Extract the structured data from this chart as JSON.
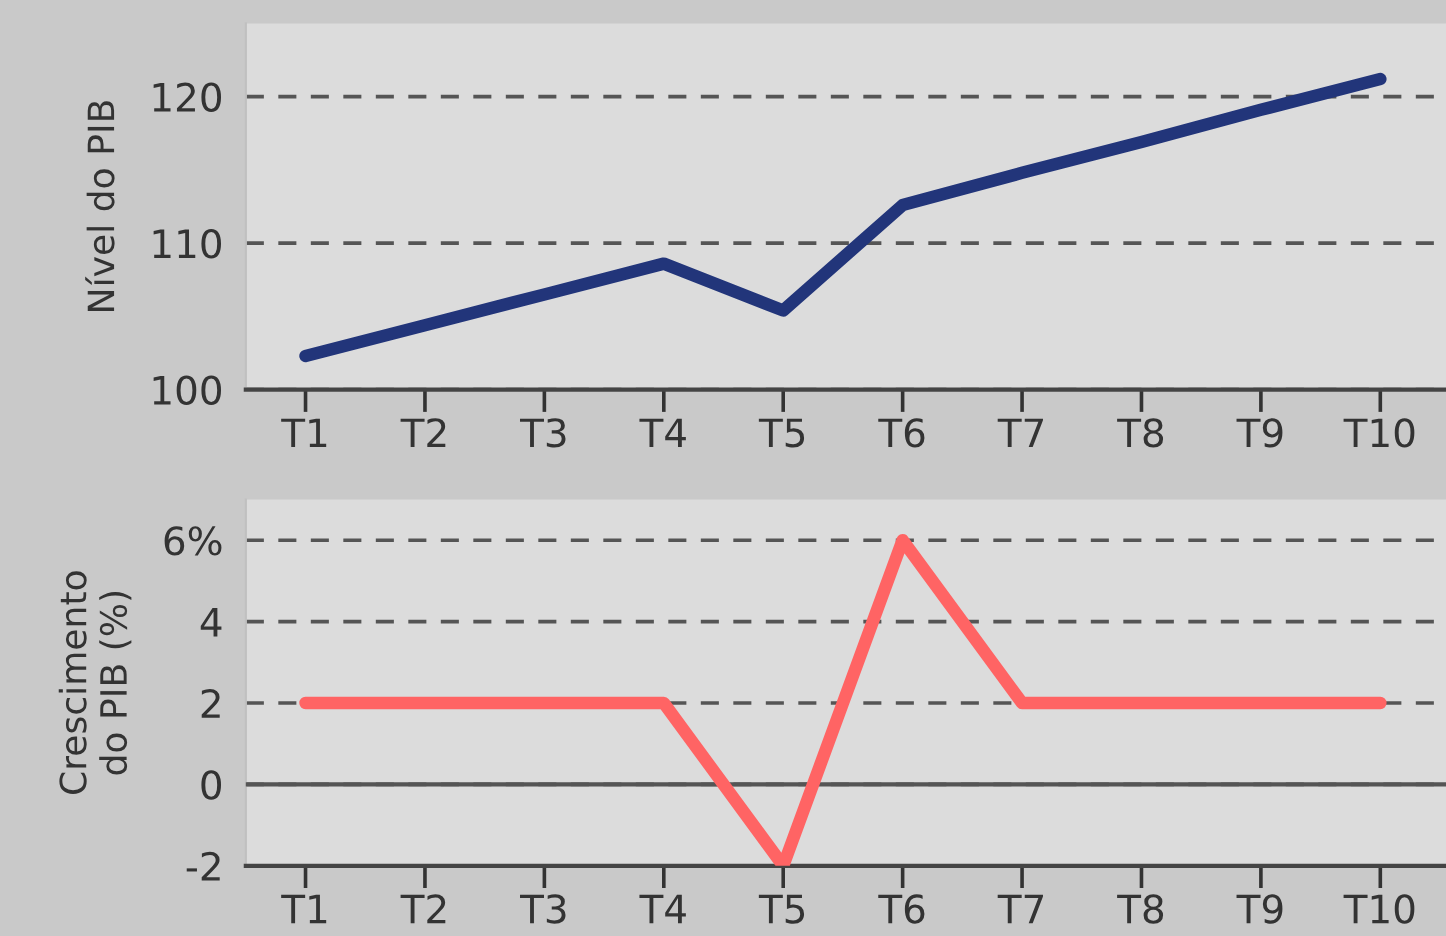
{
  "chart_data": [
    {
      "type": "line",
      "ylabel": "Nível do PIB",
      "categories": [
        "T1",
        "T2",
        "T3",
        "T4",
        "T5",
        "T6",
        "T7",
        "T8",
        "T9",
        "T10"
      ],
      "series": [
        {
          "color": "#22357a",
          "values": [
            102.3,
            104.4,
            106.5,
            108.6,
            105.4,
            112.6,
            114.8,
            116.9,
            119.1,
            121.2
          ]
        }
      ],
      "ylim": [
        100,
        125
      ],
      "yticks": [
        100,
        110,
        120
      ],
      "grid": "y",
      "marker": "none",
      "line_style": "solid"
    },
    {
      "type": "line",
      "ylabel": "Crescimento\ndo PIB (%)",
      "categories": [
        "T1",
        "T2",
        "T3",
        "T4",
        "T5",
        "T6",
        "T7",
        "T8",
        "T9",
        "T10"
      ],
      "series": [
        {
          "color": "#ff6464",
          "values": [
            2,
            2,
            2,
            2,
            -2,
            6,
            2,
            2,
            2,
            2
          ]
        }
      ],
      "ylim": [
        -2,
        7
      ],
      "yticks": [
        -2,
        0,
        2,
        4,
        {
          "value": 6,
          "label": "6%"
        }
      ],
      "grid": "y",
      "marker": "none",
      "line_style": "solid",
      "ref_lines": [
        {
          "axis": "y",
          "value": 0,
          "color": "#555555",
          "line_style": "solid"
        }
      ]
    }
  ]
}
